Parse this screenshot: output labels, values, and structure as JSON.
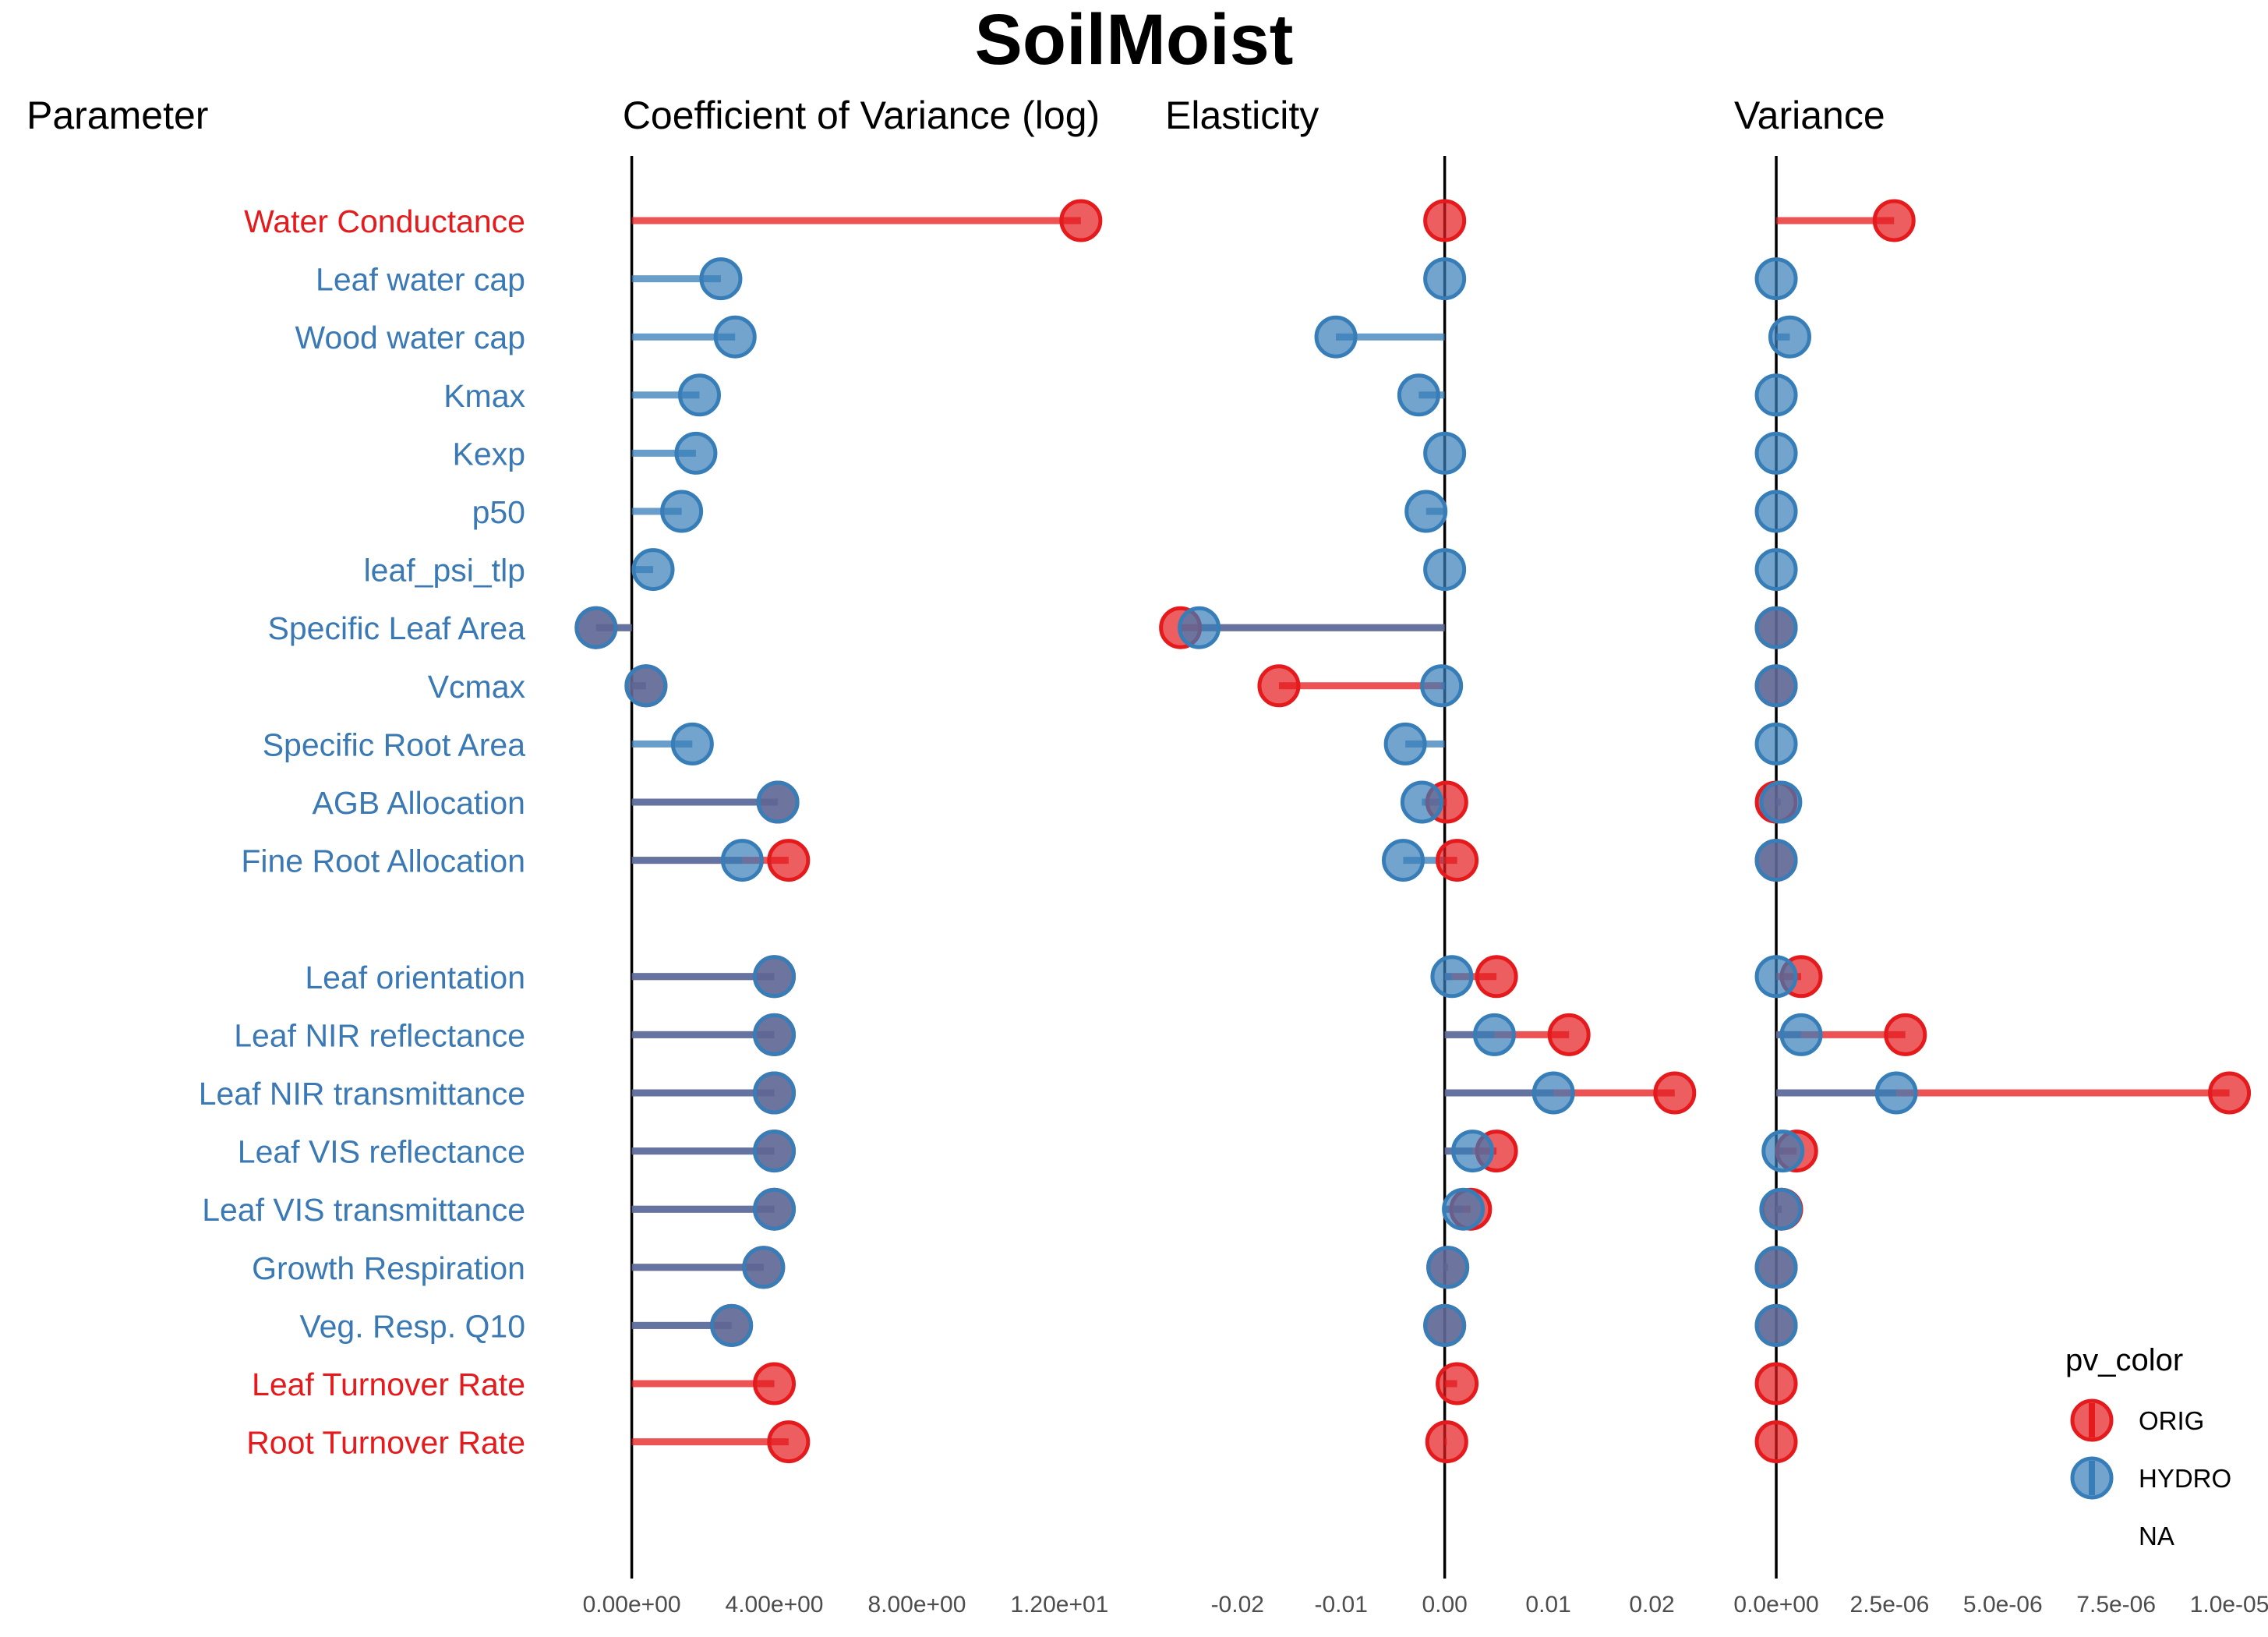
{
  "chart_data": {
    "type": "lollipop",
    "title": "SoilMoist",
    "parameter_header": "Parameter",
    "colors": {
      "ORIG": "#e41a1c",
      "HYDRO": "#377eb8",
      "overlap": "#525f8d",
      "orig_label": "#e41a1c",
      "hydro_label": "#3a79b4"
    },
    "parameters": [
      "Water Conductance",
      "Leaf water cap",
      "Wood water cap",
      "Kmax",
      "Kexp",
      "p50",
      "leaf_psi_tlp",
      "Specific Leaf Area",
      "Vcmax",
      "Specific Root Area",
      "AGB Allocation",
      "Fine Root Allocation",
      "",
      "Leaf orientation",
      "Leaf NIR reflectance",
      "Leaf NIR transmittance",
      "Leaf VIS reflectance",
      "Leaf VIS transmittance",
      "Growth Respiration",
      "Veg. Resp. Q10",
      "Leaf Turnover Rate",
      "Root Turnover Rate"
    ],
    "label_colors": [
      "orig",
      "hydro",
      "hydro",
      "hydro",
      "hydro",
      "hydro",
      "hydro",
      "hydro",
      "hydro",
      "hydro",
      "hydro",
      "hydro",
      "none",
      "hydro",
      "hydro",
      "hydro",
      "hydro",
      "hydro",
      "hydro",
      "hydro",
      "orig",
      "orig"
    ],
    "panels": [
      {
        "name": "Coefficient of Variance (log)",
        "xlim": [
          -0.8,
          13.5
        ],
        "ticks": [
          0,
          4,
          8,
          12
        ],
        "tick_labels": [
          "0.00e+00",
          "4.00e+00",
          "8.00e+00",
          "1.20e+01"
        ],
        "series": [
          {
            "name": "ORIG",
            "values": [
              12.6,
              null,
              null,
              null,
              null,
              null,
              null,
              -1.0,
              0.4,
              null,
              4.1,
              4.4,
              null,
              4.0,
              4.0,
              4.0,
              4.0,
              4.0,
              3.7,
              2.8,
              4.0,
              4.4
            ]
          },
          {
            "name": "HYDRO",
            "values": [
              null,
              2.5,
              2.9,
              1.9,
              1.8,
              1.4,
              0.6,
              -1.0,
              0.4,
              1.7,
              4.1,
              3.1,
              null,
              4.0,
              4.0,
              4.0,
              4.0,
              4.0,
              3.7,
              2.8,
              null,
              null
            ]
          }
        ]
      },
      {
        "name": "Elasticity",
        "xlim": [
          -0.026,
          0.025
        ],
        "ticks": [
          -0.02,
          -0.01,
          0.0,
          0.01,
          0.02
        ],
        "tick_labels": [
          "-0.02",
          "-0.01",
          "0.00",
          "0.01",
          "0.02"
        ],
        "series": [
          {
            "name": "ORIG",
            "values": [
              0.0,
              null,
              null,
              null,
              null,
              null,
              null,
              -0.0255,
              -0.016,
              null,
              0.0002,
              0.0012,
              null,
              0.005,
              0.012,
              0.0222,
              0.005,
              0.0025,
              0.0003,
              0.0,
              0.0012,
              0.0002
            ]
          },
          {
            "name": "HYDRO",
            "values": [
              null,
              0.0,
              -0.0105,
              -0.0025,
              0.0,
              -0.0018,
              0.0,
              -0.0237,
              -0.0003,
              -0.0038,
              -0.0022,
              -0.004,
              null,
              0.0007,
              0.0048,
              0.0105,
              0.0027,
              0.0018,
              0.0003,
              0.0,
              null,
              null
            ]
          }
        ]
      },
      {
        "name": "Variance",
        "xlim": [
          -1.6e-06,
          1.03e-05
        ],
        "ticks": [
          0,
          2.5e-06,
          5e-06,
          7.5e-06,
          1e-05
        ],
        "tick_labels": [
          "0.0e+00",
          "2.5e-06",
          "5.0e-06",
          "7.5e-06",
          "1.0e-05"
        ],
        "series": [
          {
            "name": "ORIG",
            "values": [
              2.6e-06,
              null,
              null,
              null,
              null,
              null,
              null,
              0.0,
              0.0,
              null,
              0.0,
              0.0,
              null,
              5.5e-07,
              2.85e-06,
              1e-05,
              4.5e-07,
              1.2e-07,
              0.0,
              0.0,
              0.0,
              0.0
            ]
          },
          {
            "name": "HYDRO",
            "values": [
              null,
              0.0,
              3e-07,
              0.0,
              0.0,
              0.0,
              0.0,
              0.0,
              0.0,
              0.0,
              1e-07,
              0.0,
              null,
              0.0,
              5.5e-07,
              2.65e-06,
              1.5e-07,
              1e-07,
              0.0,
              0.0,
              null,
              null
            ]
          }
        ]
      }
    ],
    "legend": {
      "title": "pv_color",
      "position": "right-bottom",
      "entries": [
        "ORIG",
        "HYDRO",
        "NA"
      ]
    },
    "grid": false
  }
}
